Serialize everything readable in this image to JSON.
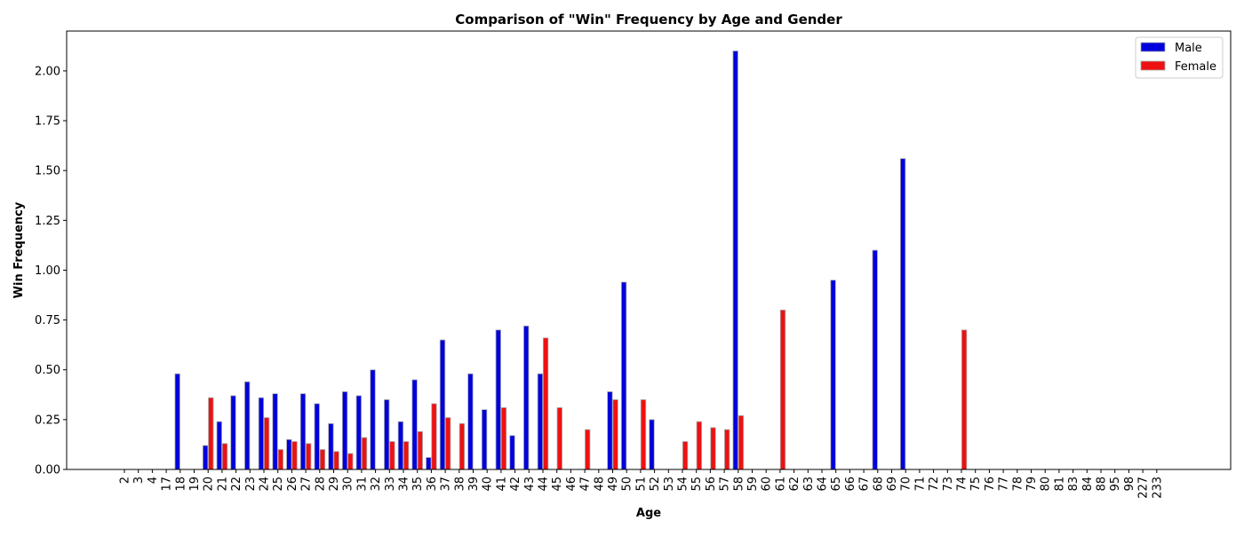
{
  "chart_data": {
    "type": "bar",
    "title": "Comparison of \"Win\" Frequency by Age and Gender",
    "xlabel": "Age",
    "ylabel": "Win Frequency",
    "ylim": [
      0,
      2.2
    ],
    "yticks": [
      "0.00",
      "0.25",
      "0.50",
      "0.75",
      "1.00",
      "1.25",
      "1.50",
      "1.75",
      "2.00"
    ],
    "legend_position": "top-right",
    "grid": false,
    "categories": [
      "2",
      "3",
      "4",
      "17",
      "18",
      "19",
      "20",
      "21",
      "22",
      "23",
      "24",
      "25",
      "26",
      "27",
      "28",
      "29",
      "30",
      "31",
      "32",
      "33",
      "34",
      "35",
      "36",
      "37",
      "38",
      "39",
      "40",
      "41",
      "42",
      "43",
      "44",
      "45",
      "46",
      "47",
      "48",
      "49",
      "50",
      "51",
      "52",
      "53",
      "54",
      "55",
      "56",
      "57",
      "58",
      "59",
      "60",
      "61",
      "62",
      "63",
      "64",
      "65",
      "66",
      "67",
      "68",
      "69",
      "70",
      "71",
      "72",
      "73",
      "74",
      "75",
      "76",
      "77",
      "78",
      "79",
      "80",
      "81",
      "83",
      "84",
      "88",
      "95",
      "98",
      "227",
      "233"
    ],
    "series": [
      {
        "name": "Male",
        "color": "#0000dd",
        "values": [
          0,
          0,
          0,
          0,
          0.48,
          0,
          0.12,
          0.24,
          0.37,
          0.44,
          0.36,
          0.38,
          0.15,
          0.38,
          0.33,
          0.23,
          0.39,
          0.37,
          0.5,
          0.35,
          0.24,
          0.45,
          0.06,
          0.65,
          0,
          0.48,
          0.3,
          0.7,
          0.17,
          0.72,
          0.48,
          0,
          0,
          0,
          0,
          0.39,
          0.94,
          0,
          0.25,
          0,
          0,
          0,
          0,
          0,
          2.1,
          0,
          0,
          0,
          0,
          0,
          0,
          0.95,
          0,
          0,
          1.1,
          0,
          1.56,
          0,
          0,
          0,
          0,
          0,
          0,
          0,
          0,
          0,
          0,
          0,
          0,
          0,
          0,
          0,
          0,
          0,
          0
        ]
      },
      {
        "name": "Female",
        "color": "#ee1111",
        "values": [
          0,
          0,
          0,
          0,
          0,
          0,
          0.36,
          0.13,
          0,
          0,
          0.26,
          0.1,
          0.14,
          0.13,
          0.1,
          0.09,
          0.08,
          0.16,
          0,
          0.14,
          0.14,
          0.19,
          0.33,
          0.26,
          0.23,
          0,
          0,
          0.31,
          0,
          0,
          0.66,
          0.31,
          0,
          0.2,
          0,
          0.35,
          0,
          0.35,
          0,
          0,
          0.14,
          0.24,
          0.21,
          0.2,
          0.27,
          0,
          0,
          0.8,
          0,
          0,
          0,
          0,
          0,
          0,
          0,
          0,
          0,
          0,
          0,
          0,
          0.7,
          0,
          0,
          0,
          0,
          0,
          0,
          0,
          0,
          0,
          0,
          0,
          0,
          0,
          0
        ]
      }
    ]
  }
}
